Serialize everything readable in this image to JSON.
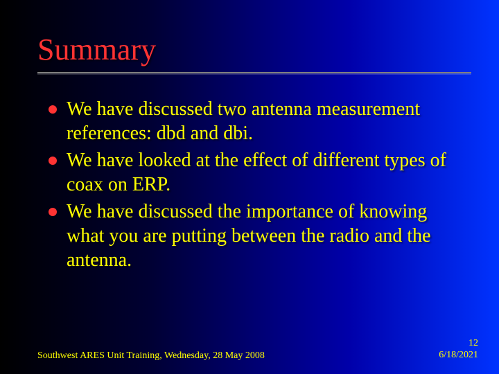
{
  "colors": {
    "title": "#ff3333",
    "text": "#ffff00",
    "bullet": "#ff3333",
    "footer": "#ffff00",
    "underline": "#808080"
  },
  "title": "Summary",
  "bullets": [
    "We have discussed two antenna measurement references: dbd and dbi.",
    "We have looked at the effect of different types of coax on ERP.",
    "We have discussed the importance of knowing what you are putting between the radio and the antenna."
  ],
  "footer": {
    "left": "Southwest ARES Unit Training, Wednesday, 28 May 2008",
    "page": "12",
    "date": "6/18/2021"
  },
  "typography": {
    "title_fontsize": 44,
    "body_fontsize": 28,
    "footer_fontsize": 14,
    "font_family": "Times New Roman"
  }
}
